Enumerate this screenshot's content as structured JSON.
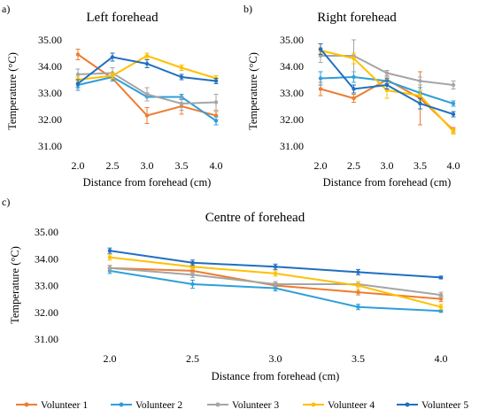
{
  "panels": [
    {
      "id": "a",
      "label": "a)"
    },
    {
      "id": "b",
      "label": "b)"
    },
    {
      "id": "c",
      "label": "c)"
    }
  ],
  "series_colors": [
    "#ED7D31",
    "#2E9FDA",
    "#A5A5A5",
    "#FFC000",
    "#1F6FC1"
  ],
  "legend": [
    "Volunteer 1",
    "Volunteer 2",
    "Volunteer 3",
    "Volunteer 4",
    "Volunteer 5"
  ],
  "chart_data": [
    {
      "type": "line",
      "title": "Left forehead",
      "xlabel": "Distance from forehead (cm)",
      "ylabel": "Temperature (°C)",
      "categories": [
        "2.0",
        "2.5",
        "3.0",
        "3.5",
        "4.0"
      ],
      "ylim": [
        31.0,
        35.0
      ],
      "yticks": [
        "31.00",
        "32.00",
        "33.00",
        "34.00",
        "35.00"
      ],
      "grid": false,
      "series": [
        {
          "name": "Volunteer 1",
          "values": [
            34.45,
            33.55,
            32.15,
            32.5,
            32.15
          ],
          "err": [
            0.2,
            0.1,
            0.3,
            0.3,
            0.15
          ]
        },
        {
          "name": "Volunteer 2",
          "values": [
            33.3,
            33.6,
            32.85,
            32.85,
            31.95
          ],
          "err": [
            0.2,
            0.15,
            0.15,
            0.1,
            0.15
          ]
        },
        {
          "name": "Volunteer 3",
          "values": [
            33.7,
            33.75,
            32.95,
            32.6,
            32.65
          ],
          "err": [
            0.2,
            0.2,
            0.25,
            0.25,
            0.3
          ]
        },
        {
          "name": "Volunteer 4",
          "values": [
            33.5,
            33.65,
            34.4,
            33.95,
            33.55
          ],
          "err": [
            0.1,
            0.1,
            0.1,
            0.1,
            0.1
          ]
        },
        {
          "name": "Volunteer 5",
          "values": [
            33.35,
            34.35,
            34.1,
            33.6,
            33.45
          ],
          "err": [
            0.15,
            0.15,
            0.15,
            0.1,
            0.1
          ]
        }
      ]
    },
    {
      "type": "line",
      "title": "Right forehead",
      "xlabel": "Distance from forehead (cm)",
      "ylabel": "Temperature (°C)",
      "categories": [
        "2.0",
        "2.5",
        "3.0",
        "3.5",
        "4.0"
      ],
      "ylim": [
        31.0,
        35.0
      ],
      "yticks": [
        "31.00",
        "32.00",
        "33.00",
        "34.00",
        "35.00"
      ],
      "grid": false,
      "series": [
        {
          "name": "Volunteer 1",
          "values": [
            33.15,
            32.8,
            33.5,
            32.8,
            31.6
          ],
          "err": [
            0.25,
            0.15,
            0.1,
            1.0,
            0.1
          ]
        },
        {
          "name": "Volunteer 2",
          "values": [
            33.55,
            33.6,
            33.45,
            33.0,
            32.6
          ],
          "err": [
            0.25,
            0.2,
            0.1,
            0.2,
            0.1
          ]
        },
        {
          "name": "Volunteer 3",
          "values": [
            34.4,
            34.4,
            33.75,
            33.45,
            33.3
          ],
          "err": [
            0.25,
            0.6,
            0.1,
            0.15,
            0.15
          ]
        },
        {
          "name": "Volunteer 4",
          "values": [
            34.6,
            34.3,
            33.1,
            32.9,
            31.55
          ],
          "err": [
            0.1,
            0.2,
            0.3,
            0.2,
            0.1
          ]
        },
        {
          "name": "Volunteer 5",
          "values": [
            34.65,
            33.15,
            33.3,
            32.6,
            32.2
          ],
          "err": [
            0.2,
            0.15,
            0.15,
            0.2,
            0.1
          ]
        }
      ]
    },
    {
      "type": "line",
      "title": "Centre of forehead",
      "xlabel": "Distance from forehead (cm)",
      "ylabel": "Temperature (°C)",
      "categories": [
        "2.0",
        "2.5",
        "3.0",
        "3.5",
        "4.0"
      ],
      "ylim": [
        31.0,
        35.0
      ],
      "yticks": [
        "31.00",
        "32.00",
        "33.00",
        "34.00",
        "35.00"
      ],
      "grid": false,
      "series": [
        {
          "name": "Volunteer 1",
          "values": [
            33.65,
            33.55,
            33.0,
            32.75,
            32.5
          ],
          "err": [
            0.1,
            0.1,
            0.1,
            0.1,
            0.1
          ]
        },
        {
          "name": "Volunteer 2",
          "values": [
            33.55,
            33.05,
            32.9,
            32.2,
            32.05
          ],
          "err": [
            0.1,
            0.15,
            0.1,
            0.1,
            0.05
          ]
        },
        {
          "name": "Volunteer 3",
          "values": [
            33.65,
            33.4,
            33.05,
            33.05,
            32.65
          ],
          "err": [
            0.1,
            0.1,
            0.1,
            0.1,
            0.1
          ]
        },
        {
          "name": "Volunteer 4",
          "values": [
            34.05,
            33.7,
            33.45,
            33.0,
            32.2
          ],
          "err": [
            0.1,
            0.1,
            0.1,
            0.15,
            0.1
          ]
        },
        {
          "name": "Volunteer 5",
          "values": [
            34.3,
            33.85,
            33.7,
            33.5,
            33.3
          ],
          "err": [
            0.1,
            0.1,
            0.1,
            0.1,
            0.05
          ]
        }
      ]
    }
  ]
}
